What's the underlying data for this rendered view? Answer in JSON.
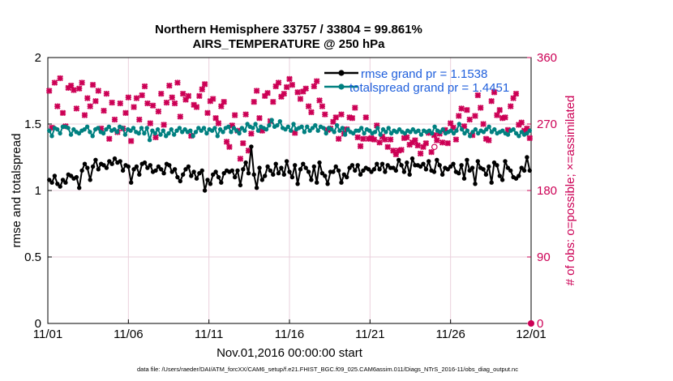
{
  "chart_data": {
    "type": "line",
    "title": "Northern Hemisphere 33757 / 33804 = 99.861%",
    "subtitle": "AIRS_TEMPERATURE @ 250 hPa",
    "xlabel": "Nov.01,2016 00:00:00 start",
    "ylabel": "rmse and totalspread",
    "ylabel_right": "# of obs: o=possible; ×=assimilated",
    "footer": "data file: /Users/raeder/DAI/ATM_forcXX/CAM6_setup/f.e21.FHIST_BGC.f09_025.CAM6assim.011/Diags_NTrS_2016-11/obs_diag_output.nc",
    "x_ticks": [
      "11/01",
      "11/06",
      "11/11",
      "11/16",
      "11/21",
      "11/26",
      "12/01"
    ],
    "xlim": [
      0,
      30
    ],
    "ylim": [
      0,
      2
    ],
    "y_ticks": [
      "0",
      "0.5",
      "1",
      "1.5",
      "2"
    ],
    "ylim_right": [
      0,
      360
    ],
    "y_ticks_right": [
      "0",
      "90",
      "180",
      "270",
      "360"
    ],
    "grid": true,
    "legend_position": "top-right",
    "colors": {
      "rmse": "#000000",
      "spread": "#008080",
      "obs": "#cc0055",
      "grid": "#ead0dc"
    },
    "series": [
      {
        "name": "rmse grand pr = 1.1538",
        "color": "#000000",
        "values": [
          1.08,
          1.06,
          1.11,
          1.05,
          1.03,
          1.08,
          1.06,
          1.12,
          1.11,
          1.09,
          1.1,
          1.02,
          1.15,
          1.2,
          1.17,
          1.08,
          1.18,
          1.23,
          1.16,
          1.2,
          1.19,
          1.17,
          1.22,
          1.2,
          1.24,
          1.21,
          1.22,
          1.15,
          1.19,
          1.18,
          1.06,
          1.16,
          1.18,
          1.12,
          1.2,
          1.21,
          1.17,
          1.19,
          1.14,
          1.15,
          1.18,
          1.16,
          1.13,
          1.2,
          1.19,
          1.14,
          1.16,
          1.1,
          1.07,
          1.12,
          1.16,
          1.18,
          1.11,
          1.14,
          1.09,
          1.13,
          1.15,
          1.0,
          1.08,
          1.05,
          1.12,
          1.14,
          1.1,
          1.06,
          1.13,
          1.15,
          1.14,
          1.15,
          1.1,
          1.15,
          1.04,
          1.16,
          1.21,
          1.13,
          1.33,
          1.12,
          1.02,
          1.17,
          1.08,
          1.11,
          1.18,
          1.15,
          1.12,
          1.2,
          1.13,
          1.17,
          1.12,
          1.22,
          1.14,
          1.1,
          1.19,
          1.05,
          1.16,
          1.2,
          1.17,
          1.14,
          1.08,
          1.18,
          1.06,
          1.21,
          1.13,
          1.11,
          1.05,
          1.14,
          1.14,
          1.18,
          1.15,
          1.06,
          1.12,
          1.1,
          1.17,
          1.19,
          1.15,
          1.19,
          1.12,
          1.15,
          1.17,
          1.16,
          1.14,
          1.16,
          1.2,
          1.16,
          1.2,
          1.14,
          1.19,
          1.17,
          1.17,
          1.15,
          1.23,
          1.19,
          1.14,
          1.21,
          1.12,
          1.24,
          1.19,
          1.19,
          1.18,
          1.2,
          1.16,
          1.22,
          1.15,
          1.14,
          1.23,
          1.19,
          1.12,
          1.17,
          1.16,
          1.18,
          1.2,
          1.14,
          1.13,
          1.19,
          1.09,
          1.23,
          1.15,
          1.17,
          1.05,
          1.22,
          1.17,
          1.16,
          1.12,
          1.18,
          1.06,
          1.21,
          1.19,
          1.11,
          1.08,
          1.22,
          1.17,
          1.15,
          1.1,
          1.09,
          1.11,
          1.17,
          1.15,
          1.25,
          1.15
        ]
      },
      {
        "name": "totalspread grand pr = 1.4451",
        "color": "#008080",
        "values": [
          1.45,
          1.41,
          1.47,
          1.46,
          1.43,
          1.48,
          1.48,
          1.47,
          1.42,
          1.46,
          1.44,
          1.43,
          1.45,
          1.46,
          1.48,
          1.44,
          1.41,
          1.46,
          1.47,
          1.44,
          1.43,
          1.46,
          1.48,
          1.45,
          1.46,
          1.44,
          1.48,
          1.47,
          1.42,
          1.46,
          1.45,
          1.47,
          1.44,
          1.43,
          1.47,
          1.43,
          1.47,
          1.38,
          1.45,
          1.43,
          1.46,
          1.42,
          1.45,
          1.41,
          1.43,
          1.46,
          1.42,
          1.45,
          1.47,
          1.44,
          1.46,
          1.44,
          1.45,
          1.41,
          1.44,
          1.47,
          1.45,
          1.47,
          1.43,
          1.46,
          1.45,
          1.47,
          1.41,
          1.46,
          1.44,
          1.47,
          1.48,
          1.44,
          1.47,
          1.45,
          1.43,
          1.47,
          1.45,
          1.5,
          1.48,
          1.47,
          1.5,
          1.45,
          1.48,
          1.47,
          1.46,
          1.49,
          1.53,
          1.48,
          1.49,
          1.52,
          1.47,
          1.46,
          1.48,
          1.45,
          1.5,
          1.46,
          1.47,
          1.48,
          1.44,
          1.48,
          1.45,
          1.47,
          1.49,
          1.45,
          1.48,
          1.47,
          1.43,
          1.47,
          1.46,
          1.44,
          1.49,
          1.45,
          1.47,
          1.42,
          1.46,
          1.44,
          1.43,
          1.45,
          1.45,
          1.47,
          1.43,
          1.46,
          1.45,
          1.43,
          1.44,
          1.47,
          1.42,
          1.46,
          1.44,
          1.47,
          1.43,
          1.45,
          1.44,
          1.46,
          1.44,
          1.43,
          1.45,
          1.44,
          1.46,
          1.44,
          1.45,
          1.42,
          1.45,
          1.44,
          1.45,
          1.43,
          1.48,
          1.45,
          1.44,
          1.46,
          1.43,
          1.44,
          1.45,
          1.43,
          1.45,
          1.5,
          1.46,
          1.43,
          1.45,
          1.41,
          1.44,
          1.46,
          1.43,
          1.45,
          1.44,
          1.46,
          1.48,
          1.44,
          1.46,
          1.43,
          1.44,
          1.45,
          1.43,
          1.42,
          1.45,
          1.46,
          1.43,
          1.41,
          1.44,
          1.42,
          1.43,
          1.45
        ]
      }
    ],
    "obs_counts": [
      315,
      265,
      326,
      294,
      332,
      285,
      267,
      319,
      322,
      316,
      291,
      318,
      326,
      282,
      305,
      294,
      323,
      301,
      315,
      264,
      288,
      311,
      250,
      299,
      276,
      259,
      298,
      264,
      285,
      306,
      247,
      293,
      305,
      276,
      309,
      321,
      298,
      271,
      295,
      252,
      287,
      311,
      269,
      299,
      322,
      306,
      298,
      326,
      280,
      311,
      303,
      308,
      254,
      296,
      293,
      308,
      317,
      324,
      285,
      301,
      304,
      278,
      271,
      294,
      300,
      246,
      239,
      268,
      282,
      261,
      223,
      244,
      283,
      234,
      257,
      300,
      315,
      278,
      261,
      308,
      312,
      274,
      300,
      321,
      326,
      307,
      311,
      320,
      331,
      323,
      258,
      313,
      304,
      314,
      318,
      294,
      286,
      321,
      328,
      302,
      294,
      283,
      262,
      264,
      273,
      279,
      250,
      283,
      257,
      263,
      279,
      278,
      292,
      252,
      240,
      250,
      279,
      250,
      251,
      249,
      268,
      245,
      253,
      249,
      239,
      249,
      234,
      229,
      234,
      235,
      251,
      252,
      242,
      245,
      248,
      241,
      230,
      239,
      244,
      258,
      232,
      255,
      248,
      257,
      245,
      262,
      244,
      271,
      265,
      249,
      281,
      291,
      267,
      289,
      276,
      255,
      281,
      309,
      292,
      270,
      250,
      248,
      301,
      313,
      282,
      289,
      278,
      279,
      262,
      294,
      305,
      311,
      269,
      272,
      261,
      264,
      251
    ],
    "obs_possible_extra": [
      {
        "x": 24.0,
        "count": 239
      }
    ],
    "end_markers": [
      {
        "x": 30.0,
        "count": 0
      }
    ]
  }
}
